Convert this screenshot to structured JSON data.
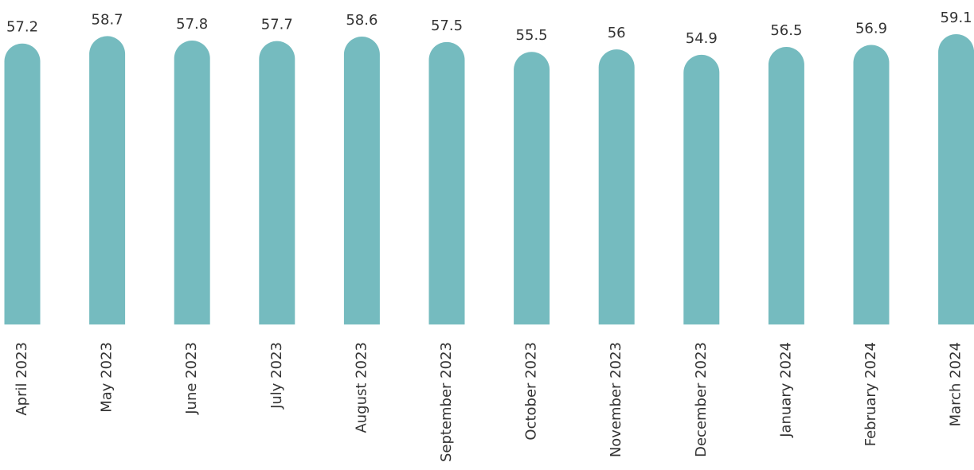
{
  "chart_data": {
    "type": "bar",
    "categories": [
      "April 2023",
      "May 2023",
      "June 2023",
      "July 2023",
      "August 2023",
      "September 2023",
      "October 2023",
      "November 2023",
      "December 2023",
      "January 2024",
      "February 2024",
      "March 2024"
    ],
    "values": [
      57.2,
      58.7,
      57.8,
      57.7,
      58.6,
      57.5,
      55.5,
      56,
      54.9,
      56.5,
      56.9,
      59.1
    ],
    "color": "#75bbbf",
    "ylim": [
      0,
      60
    ]
  }
}
